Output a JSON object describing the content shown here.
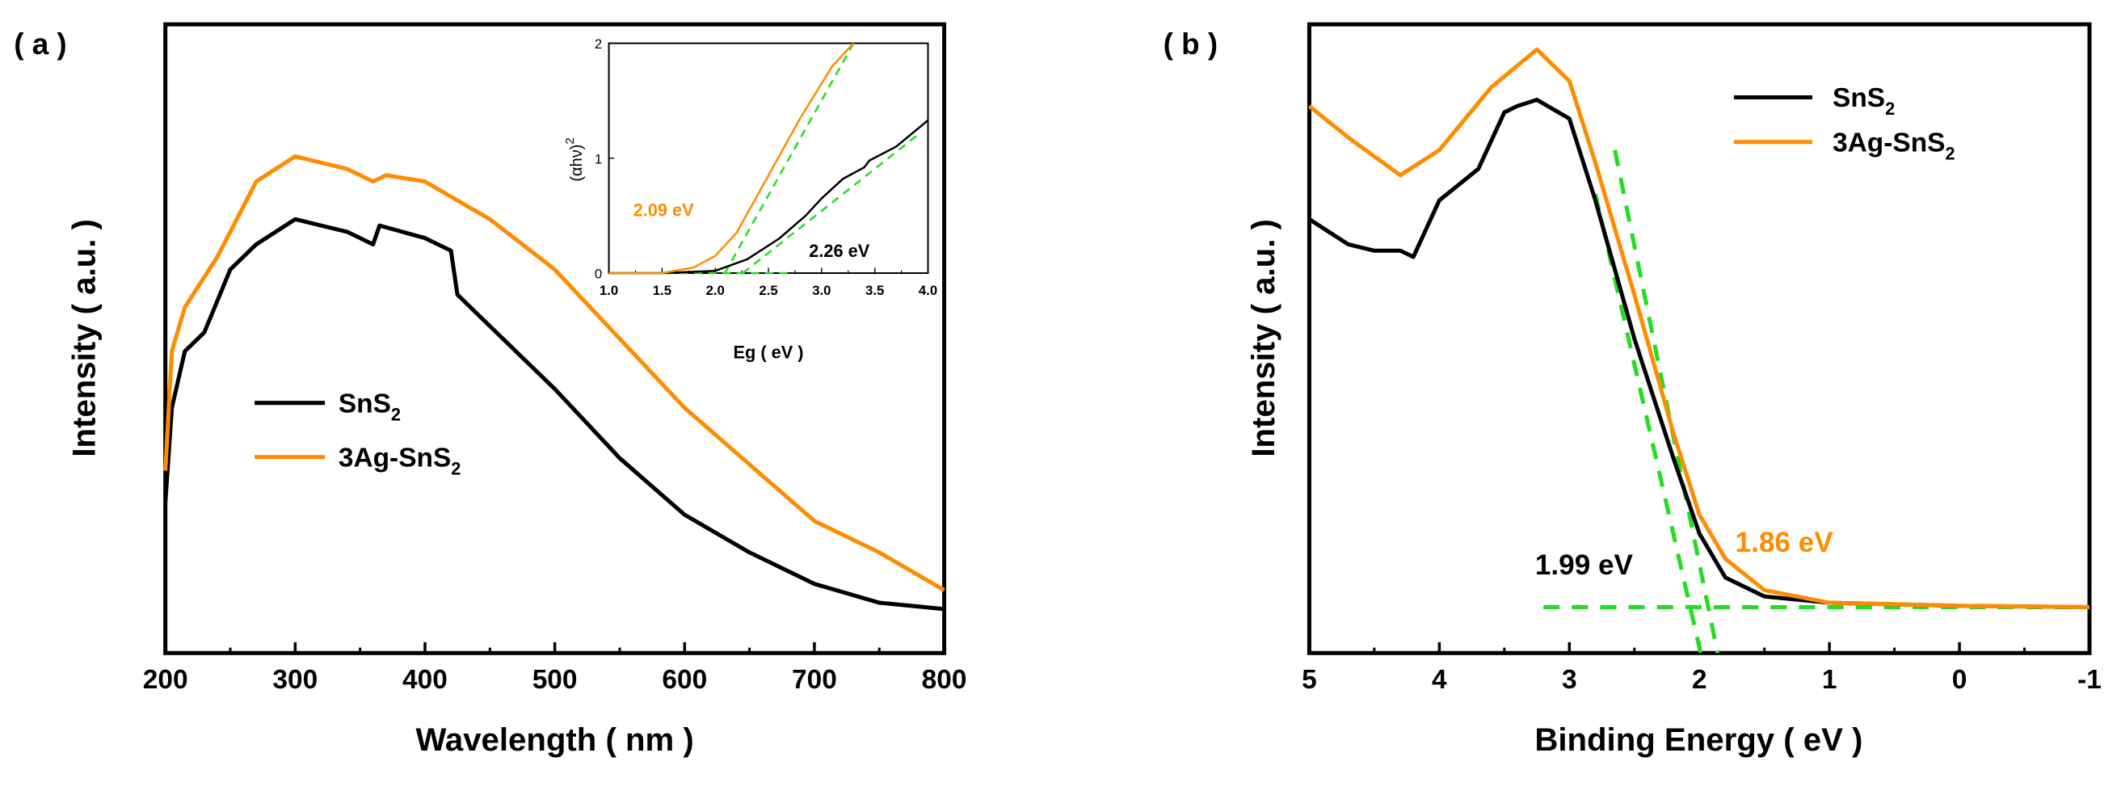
{
  "colors": {
    "sns2": "#000000",
    "ag": "#ff8c00",
    "fit": "#22dd22"
  },
  "chart_data": [
    {
      "type": "line",
      "panel_label": "( a )",
      "xlabel": "Wavelength ( nm )",
      "ylabel": "Intensity ( a.u. )",
      "xlim": [
        200,
        800
      ],
      "ylim": [
        0,
        100
      ],
      "xticks": [
        "200",
        "300",
        "400",
        "500",
        "600",
        "700",
        "800"
      ],
      "legend": {
        "placement": "center-left",
        "entries": [
          {
            "name": "SnS",
            "sub": "2"
          },
          {
            "name": "3Ag-SnS",
            "sub": "2"
          }
        ]
      },
      "series": [
        {
          "name": "SnS2",
          "x": [
            200,
            205,
            215,
            230,
            250,
            270,
            300,
            340,
            360,
            365,
            400,
            420,
            425,
            450,
            500,
            550,
            600,
            650,
            700,
            750,
            800
          ],
          "y": [
            24,
            39,
            48,
            51,
            61,
            65,
            69,
            67,
            65,
            68,
            66,
            64,
            57,
            52,
            42,
            31,
            22,
            16,
            11,
            8,
            7
          ]
        },
        {
          "name": "3Ag-SnS2",
          "x": [
            200,
            205,
            215,
            240,
            270,
            300,
            340,
            360,
            370,
            400,
            450,
            500,
            550,
            600,
            650,
            700,
            750,
            800
          ],
          "y": [
            29,
            48,
            55,
            63,
            75,
            79,
            77,
            75,
            76,
            75,
            69,
            61,
            50,
            39,
            30,
            21,
            16,
            10
          ]
        }
      ],
      "inset": {
        "xlabel": "Eg ( eV )",
        "ylabel": "(αhν)",
        "ylabel_sup": "2",
        "xlim": [
          1.0,
          4.0
        ],
        "ylim": [
          0,
          2
        ],
        "xticks": [
          "1.0",
          "1.5",
          "2.0",
          "2.5",
          "3.0",
          "3.5",
          "4.0"
        ],
        "yticks": [
          "0",
          "1",
          "2"
        ],
        "annotations": [
          {
            "text": "2.09 eV",
            "series": "3Ag-SnS2"
          },
          {
            "text": "2.26 eV",
            "series": "SnS2"
          }
        ],
        "series": [
          {
            "name": "SnS2",
            "x": [
              1.0,
              1.5,
              2.0,
              2.3,
              2.6,
              2.85,
              2.9,
              3.0,
              3.2,
              3.4,
              3.45,
              3.7,
              4.0
            ],
            "y": [
              0,
              0,
              0.02,
              0.12,
              0.3,
              0.5,
              0.55,
              0.65,
              0.82,
              0.92,
              0.98,
              1.1,
              1.33
            ]
          },
          {
            "name": "3Ag-SnS2",
            "x": [
              1.0,
              1.5,
              1.8,
              2.0,
              2.2,
              2.5,
              2.8,
              3.1,
              3.3
            ],
            "y": [
              0,
              0,
              0.05,
              0.15,
              0.35,
              0.85,
              1.35,
              1.8,
              2.0
            ]
          }
        ],
        "fits": [
          {
            "x": [
              2.09,
              3.3
            ],
            "y": [
              0,
              2.0
            ]
          },
          {
            "x": [
              2.26,
              3.9
            ],
            "y": [
              0,
              1.2
            ]
          },
          {
            "x": [
              1.0,
              2.7
            ],
            "y": [
              0,
              0
            ]
          }
        ]
      }
    },
    {
      "type": "line",
      "panel_label": "( b )",
      "xlabel": "Binding Energy ( eV )",
      "ylabel": "Intensity ( a.u. )",
      "xlim": [
        5,
        -1
      ],
      "ylim": [
        0,
        100
      ],
      "xticks": [
        "5",
        "4",
        "3",
        "2",
        "1",
        "0",
        "-1"
      ],
      "legend": {
        "placement": "top-right",
        "entries": [
          {
            "name": "SnS",
            "sub": "2"
          },
          {
            "name": "3Ag-SnS",
            "sub": "2"
          }
        ]
      },
      "annotations": [
        {
          "text": "1.99 eV",
          "series": "SnS2"
        },
        {
          "text": "1.86 eV",
          "series": "3Ag-SnS2"
        }
      ],
      "series": [
        {
          "name": "SnS2",
          "x": [
            5,
            4.7,
            4.5,
            4.3,
            4.2,
            4.0,
            3.7,
            3.5,
            3.4,
            3.25,
            3.0,
            2.8,
            2.5,
            2.2,
            2.0,
            1.8,
            1.5,
            1.0,
            0,
            -1
          ],
          "y": [
            69,
            65,
            64,
            64,
            63,
            72,
            77,
            86,
            87,
            88,
            85,
            72,
            50,
            31,
            19,
            12,
            9,
            8,
            7.5,
            7.3
          ]
        },
        {
          "name": "3Ag-SnS2",
          "x": [
            5,
            4.7,
            4.5,
            4.3,
            4.0,
            3.6,
            3.25,
            3.0,
            2.8,
            2.5,
            2.2,
            2.0,
            1.8,
            1.5,
            1.0,
            0,
            -1
          ],
          "y": [
            87,
            82,
            79,
            76,
            80,
            90,
            96,
            91,
            78,
            57,
            35,
            22,
            15,
            10,
            8,
            7.5,
            7.3
          ]
        }
      ],
      "fits": [
        {
          "x": [
            2.8,
            1.99
          ],
          "y": [
            73,
            0
          ]
        },
        {
          "x": [
            2.65,
            1.86
          ],
          "y": [
            80,
            0
          ]
        },
        {
          "x": [
            3.2,
            -1
          ],
          "y": [
            7.3,
            7.3
          ]
        }
      ]
    }
  ]
}
